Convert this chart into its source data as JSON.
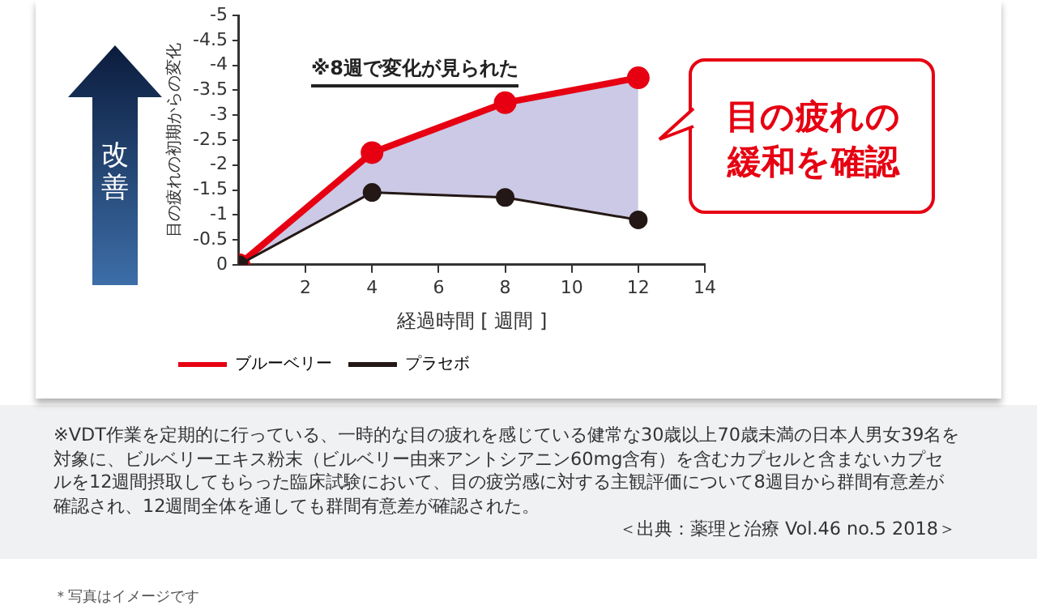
{
  "chart_data": {
    "type": "line",
    "xlabel": "経過時間 [ 週間 ]",
    "ylabel": "目の疲れの初期からの変化",
    "x": [
      0,
      4,
      8,
      12
    ],
    "series": [
      {
        "name": "ブルーベリー",
        "color": "#e60012",
        "values": [
          0,
          -2.25,
          -3.25,
          -3.75
        ]
      },
      {
        "name": "プラセボ",
        "color": "#231815",
        "values": [
          0,
          -1.45,
          -1.35,
          -0.9
        ]
      }
    ],
    "xlim": [
      0,
      14
    ],
    "xticks": [
      2,
      4,
      6,
      8,
      10,
      12,
      14
    ],
    "ylim": [
      0,
      -5
    ],
    "yticks": [
      0,
      -0.5,
      -1,
      -1.5,
      -2,
      -2.5,
      -3,
      -3.5,
      -4,
      -4.5,
      -5
    ],
    "grid": false,
    "legend": "bottom left",
    "marker": "circle",
    "line_style": "solid",
    "annotations": [
      "改善",
      "※8週で変化が見られた",
      "目の疲れの緩和を確認",
      "※VDT作業を定期的に行っている、一時的な目の疲れを感じている健常な30歳以上70歳未満の日本人男女39名を対象に、ビルベリーエキス粉末（ビルベリー由来アントシアニン60mg含有）を含むカプセルと含まないカプセルを12週間摂取してもらった臨床試験において、目の疲労感に対する主観評価について8週目から群間有意差が確認され、12週間全体を通しても群間有意差が確認された。",
      "＜出典：薬理と治療 Vol.46 no.5 2018＞",
      "＊写真はイメージです"
    ]
  }
}
